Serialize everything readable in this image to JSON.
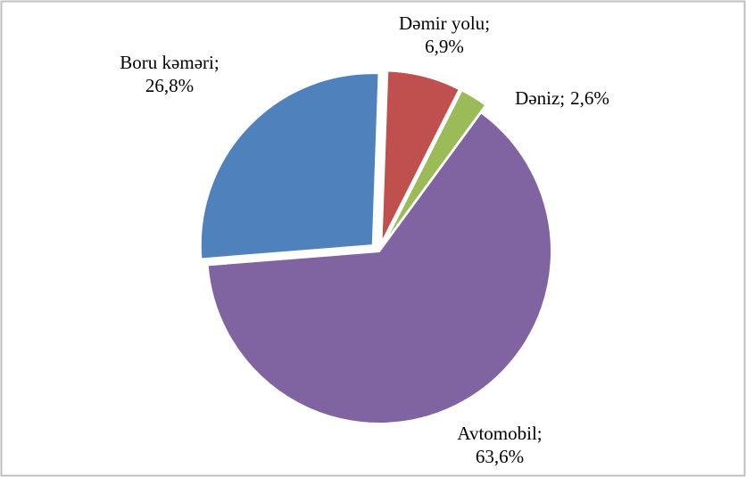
{
  "chart_data": {
    "type": "pie",
    "categories": [
      "Dəmir yolu",
      "Dəniz",
      "Avtomobil",
      "Boru kəməri"
    ],
    "values": [
      6.9,
      2.6,
      63.6,
      26.8
    ],
    "value_labels": [
      "6,9%",
      "2,6%",
      "63,6%",
      "26,8%"
    ],
    "label_separator": ";",
    "colors": [
      "#c0504d",
      "#9bbb59",
      "#8064a2",
      "#4f81bd"
    ]
  }
}
